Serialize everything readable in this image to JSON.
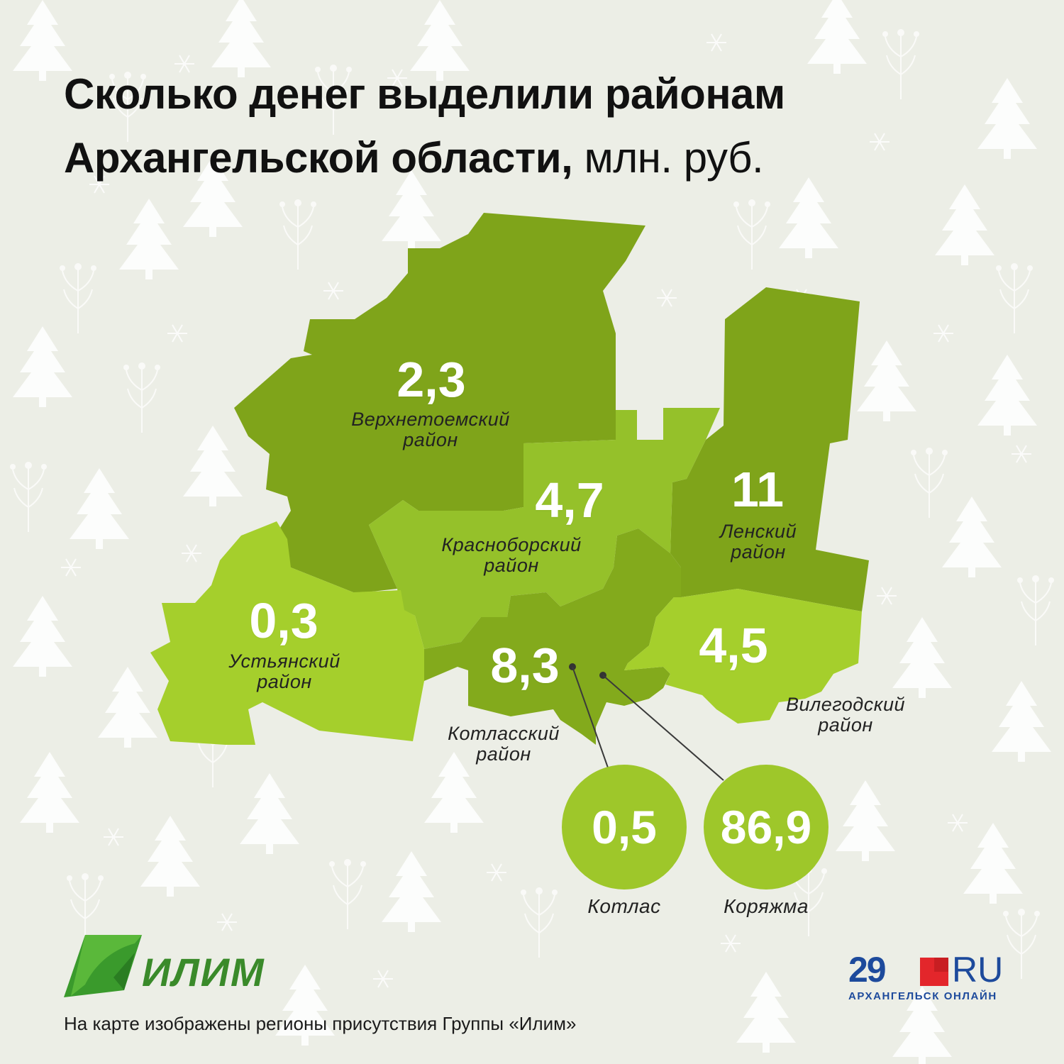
{
  "title": {
    "line1": "Сколько денег выделили районам",
    "line2_bold": "Архангельской области,",
    "line2_unit": " млн. руб."
  },
  "districts": [
    {
      "id": "verkhnetoemsky",
      "value": "2,3",
      "label_line1": "Верхнетоемский",
      "label_line2": "район",
      "color": "#7fa41a"
    },
    {
      "id": "krasnoborsky",
      "value": "4,7",
      "label_line1": "Красноборский",
      "label_line2": "район",
      "color": "#95c12a"
    },
    {
      "id": "lensky",
      "value": "11",
      "label_line1": "Ленский",
      "label_line2": "район",
      "color": "#7fa41a"
    },
    {
      "id": "ustyansky",
      "value": "0,3",
      "label_line1": "Устьянский",
      "label_line2": "район",
      "color": "#a5cf2c"
    },
    {
      "id": "kotlassky",
      "value": "8,3",
      "label_line1": "Котласский",
      "label_line2": "район",
      "color": "#83aa1c"
    },
    {
      "id": "vilegodsky",
      "value": "4,5",
      "label_line1": "Вилегодский",
      "label_line2": "район",
      "color": "#a5cf2c"
    }
  ],
  "cities": [
    {
      "id": "kotlas",
      "value": "0,5",
      "name": "Котлас"
    },
    {
      "id": "koryazhma",
      "value": "86,9",
      "name": "Коряжма"
    }
  ],
  "logos": {
    "ilim": "ИЛИМ",
    "site_num": "29",
    "site_ru": "RU",
    "site_sub": "АРХАНГЕЛЬСК ОНЛАЙН"
  },
  "footnote": "На карте изображены регионы присутствия Группы «Илим»",
  "colors": {
    "background": "#eceee6",
    "dark_green": "#7fa41a",
    "light_green": "#a5cf2c",
    "circle_green": "#9ec72a",
    "brand_blue": "#1d4a9c",
    "brand_red": "#e3262b"
  }
}
